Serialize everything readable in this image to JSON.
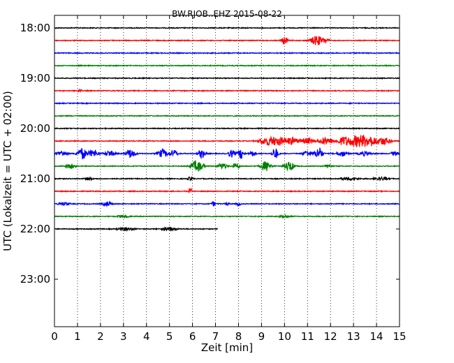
{
  "chart_data": {
    "type": "line",
    "title": "BW.RJOB..EHZ 2015-08-22",
    "xlabel": "Zeit  [min]",
    "ylabel": "UTC (Lokalzeit = UTC + 02:00)",
    "xlim": [
      0,
      15
    ],
    "x_ticks": [
      "0",
      "1",
      "2",
      "3",
      "4",
      "5",
      "6",
      "7",
      "8",
      "9",
      "10",
      "11",
      "12",
      "13",
      "14",
      "15"
    ],
    "y_ticks": [
      {
        "label": "18:00",
        "row": 0
      },
      {
        "label": "19:00",
        "row": 4
      },
      {
        "label": "20:00",
        "row": 8
      },
      {
        "label": "21:00",
        "row": 12
      },
      {
        "label": "22:00",
        "row": 16
      },
      {
        "label": "23:00",
        "row": 20
      }
    ],
    "rows_total": 24,
    "row_minutes": 15,
    "grid": "x-dotted",
    "series": [
      {
        "start": "18:00",
        "color": "#000000",
        "end_min": 15,
        "bursts": []
      },
      {
        "start": "18:15",
        "color": "#ff0000",
        "end_min": 15,
        "bursts": [
          {
            "t": 10.0,
            "a": 6,
            "w": 0.12
          },
          {
            "t": 11.4,
            "a": 7,
            "w": 0.25
          },
          {
            "t": 11.8,
            "a": 3,
            "w": 0.12
          }
        ]
      },
      {
        "start": "18:30",
        "color": "#0000ff",
        "end_min": 15,
        "bursts": []
      },
      {
        "start": "18:45",
        "color": "#008000",
        "end_min": 15,
        "bursts": []
      },
      {
        "start": "19:00",
        "color": "#000000",
        "end_min": 15,
        "bursts": []
      },
      {
        "start": "19:15",
        "color": "#ff0000",
        "end_min": 15,
        "bursts": [
          {
            "t": 1.1,
            "a": 2,
            "w": 0.08
          }
        ]
      },
      {
        "start": "19:30",
        "color": "#0000ff",
        "end_min": 15,
        "bursts": []
      },
      {
        "start": "19:45",
        "color": "#008000",
        "end_min": 15,
        "bursts": []
      },
      {
        "start": "20:00",
        "color": "#000000",
        "end_min": 15,
        "bursts": []
      },
      {
        "start": "20:15",
        "color": "#ff0000",
        "end_min": 15,
        "bursts": [
          {
            "t": 9.2,
            "a": 5,
            "w": 0.3
          },
          {
            "t": 9.7,
            "a": 6,
            "w": 0.3
          },
          {
            "t": 10.3,
            "a": 5,
            "w": 0.3
          },
          {
            "t": 11.0,
            "a": 4,
            "w": 0.25
          },
          {
            "t": 11.8,
            "a": 5,
            "w": 0.3
          },
          {
            "t": 12.6,
            "a": 6,
            "w": 0.3
          },
          {
            "t": 13.2,
            "a": 8,
            "w": 0.35
          },
          {
            "t": 13.7,
            "a": 7,
            "w": 0.3
          },
          {
            "t": 14.3,
            "a": 5,
            "w": 0.3
          }
        ]
      },
      {
        "start": "20:30",
        "color": "#0000ff",
        "end_min": 15,
        "bursts": [
          {
            "t": 0.3,
            "a": 4,
            "w": 0.2
          },
          {
            "t": 1.2,
            "a": 8,
            "w": 0.2
          },
          {
            "t": 1.7,
            "a": 5,
            "w": 0.2
          },
          {
            "t": 2.4,
            "a": 4,
            "w": 0.2
          },
          {
            "t": 3.3,
            "a": 6,
            "w": 0.2
          },
          {
            "t": 4.7,
            "a": 6,
            "w": 0.2
          },
          {
            "t": 5.2,
            "a": 5,
            "w": 0.15
          },
          {
            "t": 6.4,
            "a": 6,
            "w": 0.15
          },
          {
            "t": 7.7,
            "a": 5,
            "w": 0.15
          },
          {
            "t": 8.1,
            "a": 7,
            "w": 0.12
          },
          {
            "t": 8.6,
            "a": 4,
            "w": 0.12
          },
          {
            "t": 9.6,
            "a": 8,
            "w": 0.12
          },
          {
            "t": 11.0,
            "a": 4,
            "w": 0.2
          },
          {
            "t": 11.5,
            "a": 9,
            "w": 0.15
          },
          {
            "t": 12.5,
            "a": 4,
            "w": 0.2
          },
          {
            "t": 13.5,
            "a": 3,
            "w": 0.25
          },
          {
            "t": 14.8,
            "a": 3,
            "w": 0.15
          }
        ]
      },
      {
        "start": "20:45",
        "color": "#008000",
        "end_min": 15,
        "bursts": [
          {
            "t": 0.7,
            "a": 3,
            "w": 0.2
          },
          {
            "t": 6.2,
            "a": 8,
            "w": 0.25
          },
          {
            "t": 7.3,
            "a": 4,
            "w": 0.2
          },
          {
            "t": 7.9,
            "a": 3,
            "w": 0.15
          },
          {
            "t": 9.2,
            "a": 7,
            "w": 0.2
          },
          {
            "t": 10.2,
            "a": 7,
            "w": 0.2
          },
          {
            "t": 11.9,
            "a": 3,
            "w": 0.15
          }
        ]
      },
      {
        "start": "21:00",
        "color": "#000000",
        "end_min": 15,
        "bursts": [
          {
            "t": 1.5,
            "a": 2,
            "w": 0.15
          },
          {
            "t": 5.9,
            "a": 2,
            "w": 0.12
          },
          {
            "t": 12.8,
            "a": 2,
            "w": 0.4
          },
          {
            "t": 14.2,
            "a": 2,
            "w": 0.3
          }
        ]
      },
      {
        "start": "21:15",
        "color": "#ff0000",
        "end_min": 15,
        "bursts": [
          {
            "t": 5.9,
            "a": 6,
            "w": 0.05
          }
        ]
      },
      {
        "start": "21:30",
        "color": "#0000ff",
        "end_min": 15,
        "bursts": [
          {
            "t": 0.4,
            "a": 2,
            "w": 0.2
          },
          {
            "t": 2.3,
            "a": 3,
            "w": 0.2
          },
          {
            "t": 6.9,
            "a": 3,
            "w": 0.08
          },
          {
            "t": 7.5,
            "a": 2,
            "w": 0.08
          },
          {
            "t": 8.0,
            "a": 3,
            "w": 0.08
          }
        ]
      },
      {
        "start": "21:45",
        "color": "#008000",
        "end_min": 15,
        "bursts": [
          {
            "t": 3.0,
            "a": 2,
            "w": 0.2
          },
          {
            "t": 10.0,
            "a": 2,
            "w": 0.2
          }
        ]
      },
      {
        "start": "22:00",
        "color": "#000000",
        "end_min": 7.1,
        "bursts": [
          {
            "t": 3.1,
            "a": 2,
            "w": 0.3
          },
          {
            "t": 5.0,
            "a": 2,
            "w": 0.3
          }
        ]
      }
    ]
  }
}
